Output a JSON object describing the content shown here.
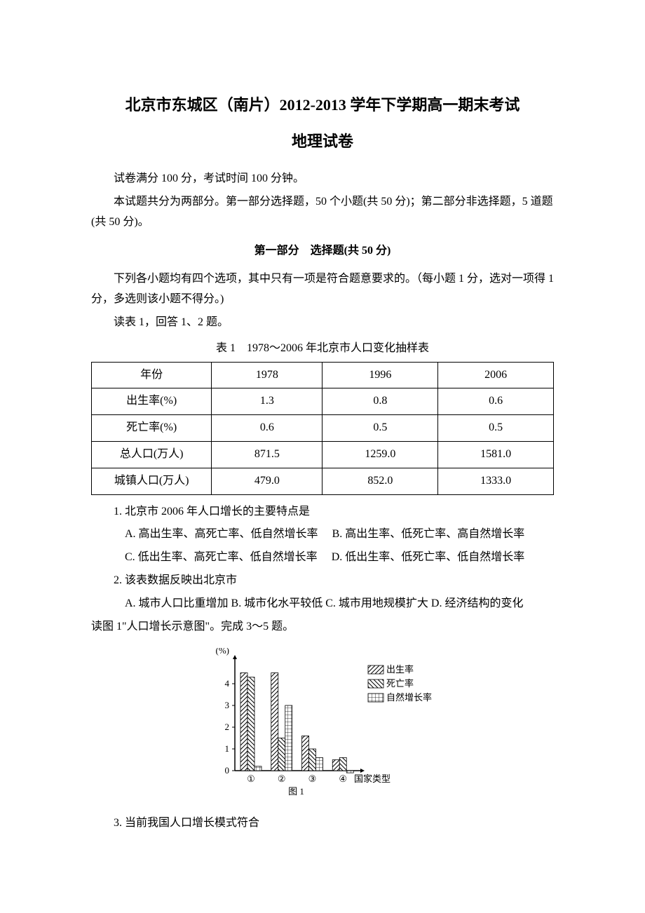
{
  "doc": {
    "title": "北京市东城区（南片）2012-2013 学年下学期高一期末考试",
    "subtitle": "地理试卷",
    "info1": "试卷满分 100 分，考试时间 100 分钟。",
    "info2": "本试题共分为两部分。第一部分选择题，50 个小题(共 50 分)；第二部分非选择题，5 道题(共 50 分)。",
    "section_header": "第一部分　选择题(共 50 分)",
    "instruction": "下列各小题均有四个选项，其中只有一项是符合题意要求的。（每小题 1 分，选对一项得 1 分，多选则该小题不得分。)",
    "read_table": "读表 1，回答 1、2 题。",
    "table_caption": "表 1　1978～2006 年北京市人口变化抽样表"
  },
  "table": {
    "columns": [
      "年份",
      "1978",
      "1996",
      "2006"
    ],
    "rows": [
      [
        "出生率(%)",
        "1.3",
        "0.8",
        "0.6"
      ],
      [
        "死亡率(%)",
        "0.6",
        "0.5",
        "0.5"
      ],
      [
        "总人口(万人)",
        "871.5",
        "1259.0",
        "1581.0"
      ],
      [
        "城镇人口(万人)",
        "479.0",
        "852.0",
        "1333.0"
      ]
    ],
    "col_widths": [
      "26%",
      "24%",
      "25%",
      "25%"
    ]
  },
  "q1": {
    "stem": "1. 北京市 2006 年人口增长的主要特点是",
    "optA": "A. 高出生率、高死亡率、低自然增长率",
    "optB": "B. 高出生率、低死亡率、高自然增长率",
    "optC": "C. 低出生率、高死亡率、低自然增长率",
    "optD": "D. 低出生率、低死亡率、低自然增长率"
  },
  "q2": {
    "stem": "2. 该表数据反映出北京市",
    "opts": "A. 城市人口比重增加 B. 城市化水平较低 C. 城市用地规模扩大 D. 经济结构的变化"
  },
  "fig1_intro": "读图 1\"人口增长示意图\"。完成 3～5 题。",
  "chart": {
    "type": "bar",
    "ylabel": "(%)",
    "yticks": [
      0,
      1,
      2,
      3,
      4
    ],
    "ylim": [
      0,
      5
    ],
    "categories": [
      "①",
      "②",
      "③",
      "④"
    ],
    "xlabel": "国家类型",
    "series": [
      {
        "name": "出生率",
        "pattern": "diag1",
        "values": [
          4.5,
          4.5,
          1.6,
          0.5
        ]
      },
      {
        "name": "死亡率",
        "pattern": "diag2",
        "values": [
          4.3,
          1.5,
          1.0,
          0.6
        ]
      },
      {
        "name": "自然增长率",
        "pattern": "grid",
        "values": [
          0.2,
          3.0,
          0.6,
          -0.1
        ]
      }
    ],
    "caption": "图 1",
    "legend_labels": [
      "出生率",
      "死亡率",
      "自然增长率"
    ],
    "axis_color": "#000000",
    "bg_color": "#ffffff"
  },
  "q3": {
    "stem": "3. 当前我国人口增长模式符合"
  }
}
